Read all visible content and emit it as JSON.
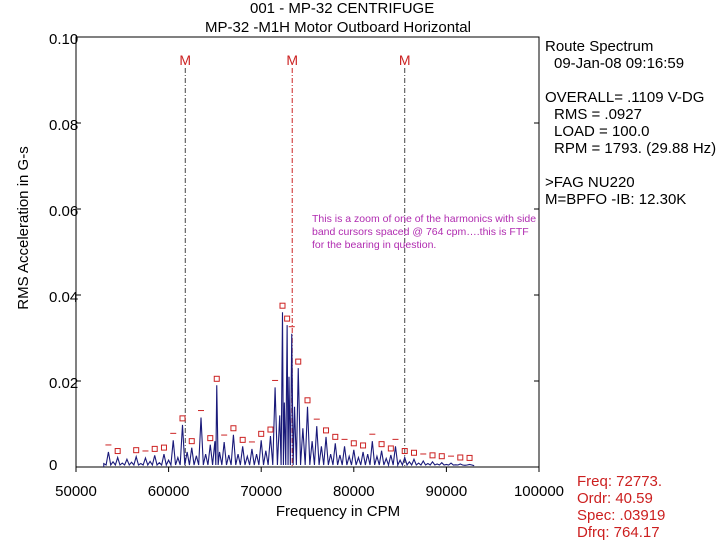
{
  "chart_data": {
    "type": "line",
    "title_line1": "001  - MP-32 CENTRIFUGE",
    "title_line2": "MP-32     -M1H   Motor Outboard Horizontal",
    "xlabel": "Frequency in CPM",
    "ylabel": "RMS Acceleration in G-s",
    "xlim": [
      50000,
      100000
    ],
    "ylim": [
      0,
      0.1
    ],
    "x_ticks": [
      "50000",
      "60000",
      "70000",
      "80000",
      "90000",
      "100000"
    ],
    "y_ticks": [
      "0",
      "0.02",
      "0.04",
      "0.06",
      "0.08",
      "0.10"
    ],
    "cursors": [
      {
        "x": 61800,
        "label": "M"
      },
      {
        "x": 73350,
        "label": "M"
      },
      {
        "x": 85500,
        "label": "M"
      }
    ],
    "spectrum": [
      [
        53000,
        0.0008
      ],
      [
        53500,
        0.0035
      ],
      [
        54000,
        0.0012
      ],
      [
        54500,
        0.0022
      ],
      [
        55000,
        0.0009
      ],
      [
        55500,
        0.0018
      ],
      [
        56000,
        0.0011
      ],
      [
        56500,
        0.0024
      ],
      [
        57000,
        0.0008
      ],
      [
        57500,
        0.0021
      ],
      [
        58000,
        0.0013
      ],
      [
        58500,
        0.0027
      ],
      [
        59000,
        0.001
      ],
      [
        59500,
        0.003
      ],
      [
        60000,
        0.0016
      ],
      [
        60500,
        0.0062
      ],
      [
        61000,
        0.0022
      ],
      [
        61500,
        0.0098
      ],
      [
        62000,
        0.0035
      ],
      [
        62500,
        0.0045
      ],
      [
        63000,
        0.0026
      ],
      [
        63500,
        0.0115
      ],
      [
        64000,
        0.003
      ],
      [
        64500,
        0.0052
      ],
      [
        65000,
        0.006
      ],
      [
        65200,
        0.019
      ],
      [
        65500,
        0.0035
      ],
      [
        66000,
        0.0058
      ],
      [
        66500,
        0.0028
      ],
      [
        67000,
        0.0075
      ],
      [
        67500,
        0.003
      ],
      [
        68000,
        0.0048
      ],
      [
        68500,
        0.0025
      ],
      [
        69000,
        0.0042
      ],
      [
        69500,
        0.003
      ],
      [
        70000,
        0.0062
      ],
      [
        70500,
        0.0038
      ],
      [
        71000,
        0.0072
      ],
      [
        71500,
        0.0185
      ],
      [
        72000,
        0.012
      ],
      [
        72300,
        0.036
      ],
      [
        72500,
        0.015
      ],
      [
        72800,
        0.033
      ],
      [
        73000,
        0.021
      ],
      [
        73300,
        0.031
      ],
      [
        73600,
        0.014
      ],
      [
        74000,
        0.023
      ],
      [
        74500,
        0.009
      ],
      [
        75000,
        0.014
      ],
      [
        75500,
        0.006
      ],
      [
        76000,
        0.0095
      ],
      [
        76500,
        0.0048
      ],
      [
        77000,
        0.007
      ],
      [
        77500,
        0.003
      ],
      [
        78000,
        0.0055
      ],
      [
        78500,
        0.0028
      ],
      [
        79000,
        0.0048
      ],
      [
        79500,
        0.0025
      ],
      [
        80000,
        0.004
      ],
      [
        80500,
        0.0022
      ],
      [
        81000,
        0.0035
      ],
      [
        81500,
        0.003
      ],
      [
        82000,
        0.006
      ],
      [
        82500,
        0.0025
      ],
      [
        83000,
        0.0038
      ],
      [
        83500,
        0.002
      ],
      [
        84000,
        0.0028
      ],
      [
        84500,
        0.0048
      ],
      [
        85000,
        0.0016
      ],
      [
        85500,
        0.0022
      ],
      [
        86000,
        0.0012
      ],
      [
        86500,
        0.0018
      ],
      [
        87000,
        0.0009
      ],
      [
        87500,
        0.0014
      ],
      [
        88000,
        0.0008
      ],
      [
        88500,
        0.0012
      ],
      [
        89000,
        0.0007
      ],
      [
        89500,
        0.001
      ],
      [
        90000,
        0.0006
      ],
      [
        90500,
        0.0009
      ],
      [
        91000,
        0.0005
      ],
      [
        91500,
        0.0007
      ],
      [
        92000,
        0.0004
      ],
      [
        92500,
        0.0006
      ],
      [
        93000,
        0.0003
      ]
    ],
    "peak_markers": [
      [
        53500,
        0.0035
      ],
      [
        54500,
        0.0022
      ],
      [
        56500,
        0.0024
      ],
      [
        57500,
        0.0021
      ],
      [
        58500,
        0.0027
      ],
      [
        59500,
        0.003
      ],
      [
        60500,
        0.0062
      ],
      [
        61500,
        0.0098
      ],
      [
        62500,
        0.0045
      ],
      [
        63500,
        0.0115
      ],
      [
        64500,
        0.0052
      ],
      [
        65200,
        0.019
      ],
      [
        66000,
        0.0058
      ],
      [
        67000,
        0.0075
      ],
      [
        68000,
        0.0048
      ],
      [
        69000,
        0.0042
      ],
      [
        70000,
        0.0062
      ],
      [
        71000,
        0.0072
      ],
      [
        71500,
        0.0185
      ],
      [
        72300,
        0.036
      ],
      [
        72800,
        0.033
      ],
      [
        73300,
        0.031
      ],
      [
        74000,
        0.023
      ],
      [
        75000,
        0.014
      ],
      [
        76000,
        0.0095
      ],
      [
        77000,
        0.007
      ],
      [
        78000,
        0.0055
      ],
      [
        79000,
        0.0048
      ],
      [
        80000,
        0.004
      ],
      [
        81000,
        0.0035
      ],
      [
        82000,
        0.006
      ],
      [
        83000,
        0.0038
      ],
      [
        84000,
        0.0028
      ],
      [
        84500,
        0.0048
      ],
      [
        85500,
        0.0022
      ],
      [
        86500,
        0.0018
      ],
      [
        87500,
        0.0014
      ],
      [
        88500,
        0.0012
      ],
      [
        89500,
        0.001
      ],
      [
        90500,
        0.0009
      ],
      [
        91500,
        0.0007
      ],
      [
        92500,
        0.0006
      ]
    ]
  },
  "info": {
    "heading": "Route Spectrum",
    "date": "09-Jan-08  09:16:59",
    "overall": "OVERALL= .1109 V-DG",
    "rms": "RMS =  .0927",
    "load": "LOAD = 100.0",
    "rpm": "RPM = 1793. (29.88 Hz)",
    "fault1": ">FAG NU220",
    "fault2": "M=BPFO -IB: 12.30K"
  },
  "cursor_readout": {
    "freq": "Freq:  72773.",
    "ordr": "Ordr:   40.59",
    "spec": "Spec:  .03919",
    "dfrq": "Dfrq:  764.17"
  },
  "annotation": "This is a zoom of one of the harmonics with side band cursors spaced @ 764 cpm….this is FTF for the bearing in question.",
  "colors": {
    "spectrum": "#1a1a7a",
    "cursor": "#444444",
    "center_cursor": "#cc2222",
    "marker": "#cc2222",
    "readout": "#cc1f1f",
    "note": "#b02bb0"
  }
}
